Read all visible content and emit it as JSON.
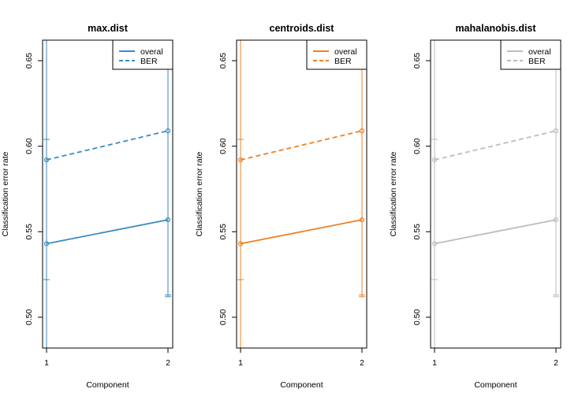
{
  "chart_data": [
    {
      "type": "line",
      "title": "max.dist",
      "xlabel": "Component",
      "ylabel": "Classification error rate",
      "x": [
        1,
        2
      ],
      "x_ticks": [
        "1",
        "2"
      ],
      "ylim": [
        0.482,
        0.662
      ],
      "y_ticks": [
        "0.50",
        "0.55",
        "0.60",
        "0.65"
      ],
      "color": "#3a8bc2",
      "legend": {
        "position": "top-right",
        "entries": [
          "overal",
          "BER"
        ]
      },
      "series": [
        {
          "name": "overal",
          "line": "solid",
          "values": [
            0.543,
            0.557
          ],
          "error_low": [
            0.522,
            0.512
          ],
          "error_high": [
            0.665,
            0.665
          ]
        },
        {
          "name": "BER",
          "line": "dashed",
          "values": [
            0.592,
            0.609
          ],
          "error_low": [
            0.48,
            0.513
          ],
          "error_high": [
            0.604,
            0.665
          ]
        }
      ]
    },
    {
      "type": "line",
      "title": "centroids.dist",
      "xlabel": "Component",
      "ylabel": "Classification error rate",
      "x": [
        1,
        2
      ],
      "x_ticks": [
        "1",
        "2"
      ],
      "ylim": [
        0.482,
        0.662
      ],
      "y_ticks": [
        "0.50",
        "0.55",
        "0.60",
        "0.65"
      ],
      "color": "#f08022",
      "legend": {
        "position": "top-right",
        "entries": [
          "overal",
          "BER"
        ]
      },
      "series": [
        {
          "name": "overal",
          "line": "solid",
          "values": [
            0.543,
            0.557
          ],
          "error_low": [
            0.522,
            0.512
          ],
          "error_high": [
            0.665,
            0.665
          ]
        },
        {
          "name": "BER",
          "line": "dashed",
          "values": [
            0.592,
            0.609
          ],
          "error_low": [
            0.48,
            0.513
          ],
          "error_high": [
            0.604,
            0.665
          ]
        }
      ]
    },
    {
      "type": "line",
      "title": "mahalanobis.dist",
      "xlabel": "Component",
      "ylabel": "Classification error rate",
      "x": [
        1,
        2
      ],
      "x_ticks": [
        "1",
        "2"
      ],
      "ylim": [
        0.482,
        0.662
      ],
      "y_ticks": [
        "0.50",
        "0.55",
        "0.60",
        "0.65"
      ],
      "color": "#bdbdbd",
      "legend": {
        "position": "top-right",
        "entries": [
          "overal",
          "BER"
        ]
      },
      "series": [
        {
          "name": "overal",
          "line": "solid",
          "values": [
            0.543,
            0.557
          ],
          "error_low": [
            0.522,
            0.512
          ],
          "error_high": [
            0.665,
            0.665
          ]
        },
        {
          "name": "BER",
          "line": "dashed",
          "values": [
            0.592,
            0.609
          ],
          "error_low": [
            0.48,
            0.513
          ],
          "error_high": [
            0.604,
            0.665
          ]
        }
      ]
    }
  ]
}
